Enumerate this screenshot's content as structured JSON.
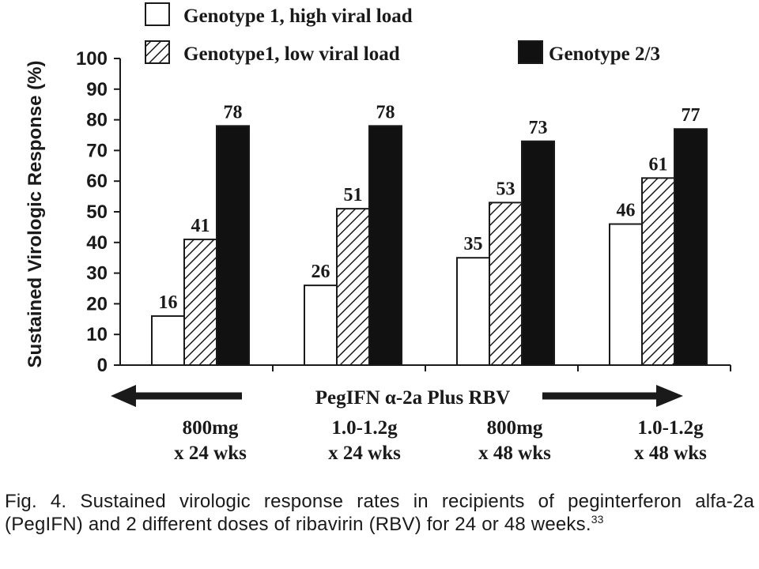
{
  "chart_data": {
    "type": "bar",
    "ylabel": "Sustained Virologic Response (%)",
    "ylim": [
      0,
      100
    ],
    "yticks": [
      "0",
      "10",
      "20",
      "30",
      "40",
      "50",
      "60",
      "70",
      "80",
      "90",
      "100"
    ],
    "grid": false,
    "legend_position": "top",
    "arrow_label": "PegIFN α-2a Plus RBV",
    "categories": [
      {
        "line1": "800mg",
        "line2": "x 24 wks"
      },
      {
        "line1": "1.0-1.2g",
        "line2": "x 24 wks"
      },
      {
        "line1": "800mg",
        "line2": "x 48 wks"
      },
      {
        "line1": "1.0-1.2g",
        "line2": "x 48 wks"
      }
    ],
    "series": [
      {
        "name": "Genotype 1, high viral load",
        "values": [
          16,
          26,
          35,
          46
        ],
        "fill": "white"
      },
      {
        "name": "Genotype1, low viral load",
        "values": [
          41,
          51,
          53,
          61
        ],
        "fill": "hatch"
      },
      {
        "name": "Genotype 2/3",
        "values": [
          78,
          78,
          73,
          77
        ],
        "fill": "black"
      }
    ]
  },
  "caption": {
    "text": "Fig. 4.  Sustained virologic response rates in recipients of peginterferon alfa-2a (PegIFN) and 2 different doses of ribavirin (RBV) for 24 or 48 weeks.",
    "ref": "33"
  },
  "colors": {
    "bar_outline": "#1a1a1a",
    "black_bar": "#111111",
    "text": "#1a1a1a"
  }
}
